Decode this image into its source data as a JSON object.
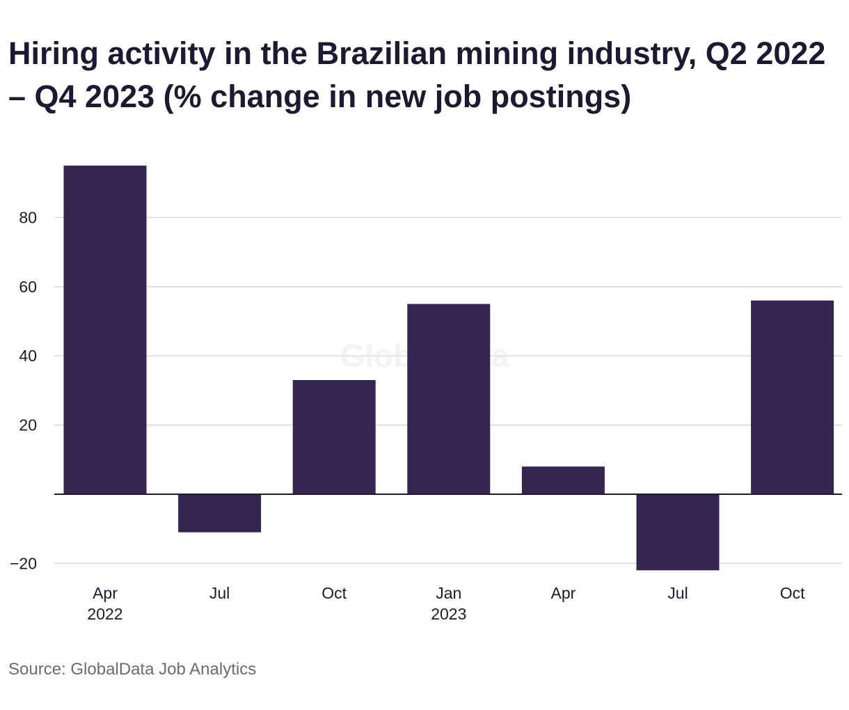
{
  "chart_data": {
    "type": "bar",
    "title": "Hiring activity in the Brazilian mining industry, Q2 2022 – Q4 2023 (% change in new job postings)",
    "categories": [
      "Apr 2022",
      "Jul 2022",
      "Oct 2022",
      "Jan 2023",
      "Apr 2023",
      "Jul 2023",
      "Oct 2023"
    ],
    "tick_labels": [
      {
        "line1": "Apr",
        "line2": "2022"
      },
      {
        "line1": "Jul",
        "line2": ""
      },
      {
        "line1": "Oct",
        "line2": ""
      },
      {
        "line1": "Jan",
        "line2": "2023"
      },
      {
        "line1": "Apr",
        "line2": ""
      },
      {
        "line1": "Jul",
        "line2": ""
      },
      {
        "line1": "Oct",
        "line2": ""
      }
    ],
    "values": [
      95,
      -11,
      33,
      55,
      8,
      -22,
      56
    ],
    "ylim": [
      -20,
      95
    ],
    "yticks": [
      -20,
      20,
      40,
      60,
      80
    ],
    "ytick_labels": [
      "−20",
      "20",
      "40",
      "60",
      "80"
    ],
    "grid": true,
    "bar_color": "#342552",
    "watermark": "GlobalData"
  },
  "source": "Source: GlobalData Job Analytics"
}
